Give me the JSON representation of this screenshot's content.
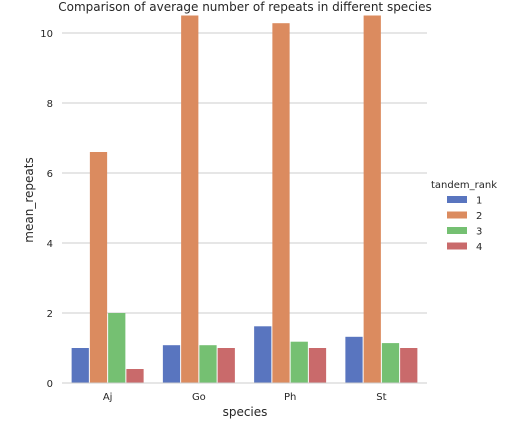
{
  "chart_data": {
    "type": "bar",
    "title": "Comparison of average number of repeats in different species",
    "xlabel": "species",
    "ylabel": "mean_repeats",
    "categories": [
      "Aj",
      "Go",
      "Ph",
      "St"
    ],
    "series": [
      {
        "name": "1",
        "values": [
          1.0,
          1.08,
          1.62,
          1.32
        ]
      },
      {
        "name": "2",
        "values": [
          6.6,
          10.5,
          10.28,
          10.5
        ]
      },
      {
        "name": "3",
        "values": [
          2.0,
          1.08,
          1.18,
          1.14
        ]
      },
      {
        "name": "4",
        "values": [
          0.4,
          1.0,
          1.0,
          1.0
        ]
      }
    ],
    "ylim": [
      0,
      10.6
    ],
    "yticks": [
      "0",
      "2",
      "4",
      "6",
      "8",
      "10"
    ],
    "grid": "horizontal",
    "legend": {
      "title": "tandem_rank",
      "placement": "right"
    },
    "colors": [
      "#5975bf",
      "#db8b5f",
      "#75c072",
      "#c96a6b"
    ]
  }
}
